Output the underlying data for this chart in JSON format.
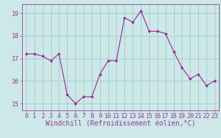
{
  "x": [
    0,
    1,
    2,
    3,
    4,
    5,
    6,
    7,
    8,
    9,
    10,
    11,
    12,
    13,
    14,
    15,
    16,
    17,
    18,
    19,
    20,
    21,
    22,
    23
  ],
  "y": [
    17.2,
    17.2,
    17.1,
    16.9,
    17.2,
    15.4,
    15.0,
    15.3,
    15.3,
    16.3,
    16.9,
    16.9,
    18.8,
    18.6,
    19.1,
    18.2,
    18.2,
    18.1,
    17.3,
    16.6,
    16.1,
    16.3,
    15.8,
    16.0
  ],
  "line_color": "#993399",
  "marker": "D",
  "marker_size": 2,
  "bg_color": "#cce8e8",
  "grid_color": "#aacccc",
  "xlabel": "Windchill (Refroidissement éolien,°C)",
  "xlim": [
    -0.5,
    23.5
  ],
  "ylim": [
    14.7,
    19.4
  ],
  "yticks": [
    15,
    16,
    17,
    18,
    19
  ],
  "xticks": [
    0,
    1,
    2,
    3,
    4,
    5,
    6,
    7,
    8,
    9,
    10,
    11,
    12,
    13,
    14,
    15,
    16,
    17,
    18,
    19,
    20,
    21,
    22,
    23
  ],
  "tick_fontsize": 6.5,
  "xlabel_fontsize": 7.0
}
